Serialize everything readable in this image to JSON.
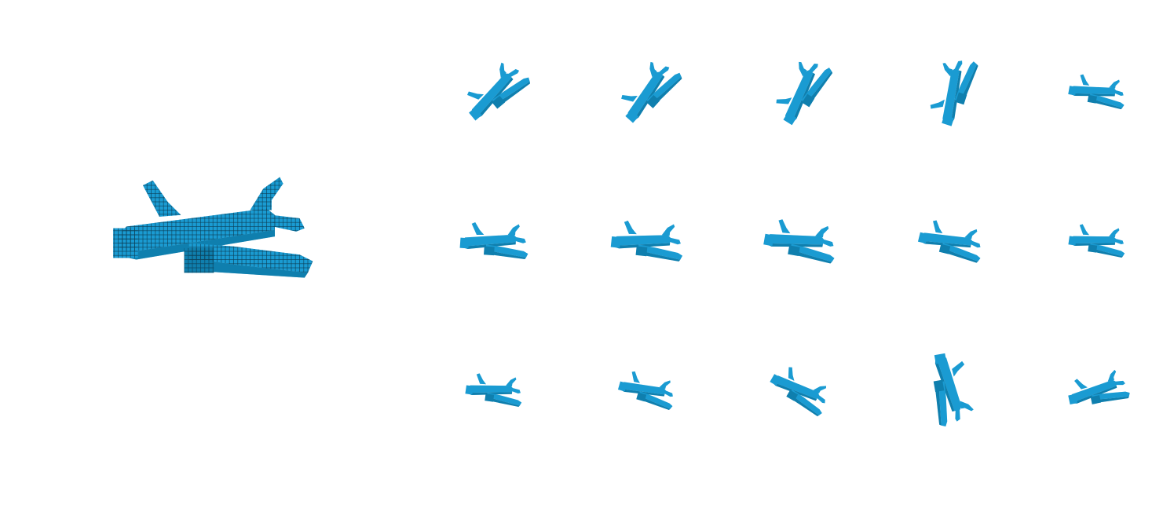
{
  "colors": {
    "background": "#ffffff",
    "voxel_face": "#1a9bd2",
    "voxel_shade": "#0f7fae",
    "voxel_edge": "#0b3f57"
  },
  "figure": {
    "main_subject": "voxel-airplane-reference",
    "grid": {
      "rows": 3,
      "cols": 5
    },
    "views": [
      {
        "row": 1,
        "col": 1,
        "icon": "voxel-airplane"
      },
      {
        "row": 1,
        "col": 2,
        "icon": "voxel-airplane"
      },
      {
        "row": 1,
        "col": 3,
        "icon": "voxel-airplane"
      },
      {
        "row": 1,
        "col": 4,
        "icon": "voxel-airplane"
      },
      {
        "row": 1,
        "col": 5,
        "icon": "voxel-airplane"
      },
      {
        "row": 2,
        "col": 1,
        "icon": "voxel-airplane"
      },
      {
        "row": 2,
        "col": 2,
        "icon": "voxel-airplane"
      },
      {
        "row": 2,
        "col": 3,
        "icon": "voxel-airplane"
      },
      {
        "row": 2,
        "col": 4,
        "icon": "voxel-airplane"
      },
      {
        "row": 2,
        "col": 5,
        "icon": "voxel-airplane"
      },
      {
        "row": 3,
        "col": 1,
        "icon": "voxel-airplane"
      },
      {
        "row": 3,
        "col": 2,
        "icon": "voxel-airplane"
      },
      {
        "row": 3,
        "col": 3,
        "icon": "voxel-airplane"
      },
      {
        "row": 3,
        "col": 4,
        "icon": "voxel-airplane"
      },
      {
        "row": 3,
        "col": 5,
        "icon": "voxel-airplane"
      }
    ]
  }
}
